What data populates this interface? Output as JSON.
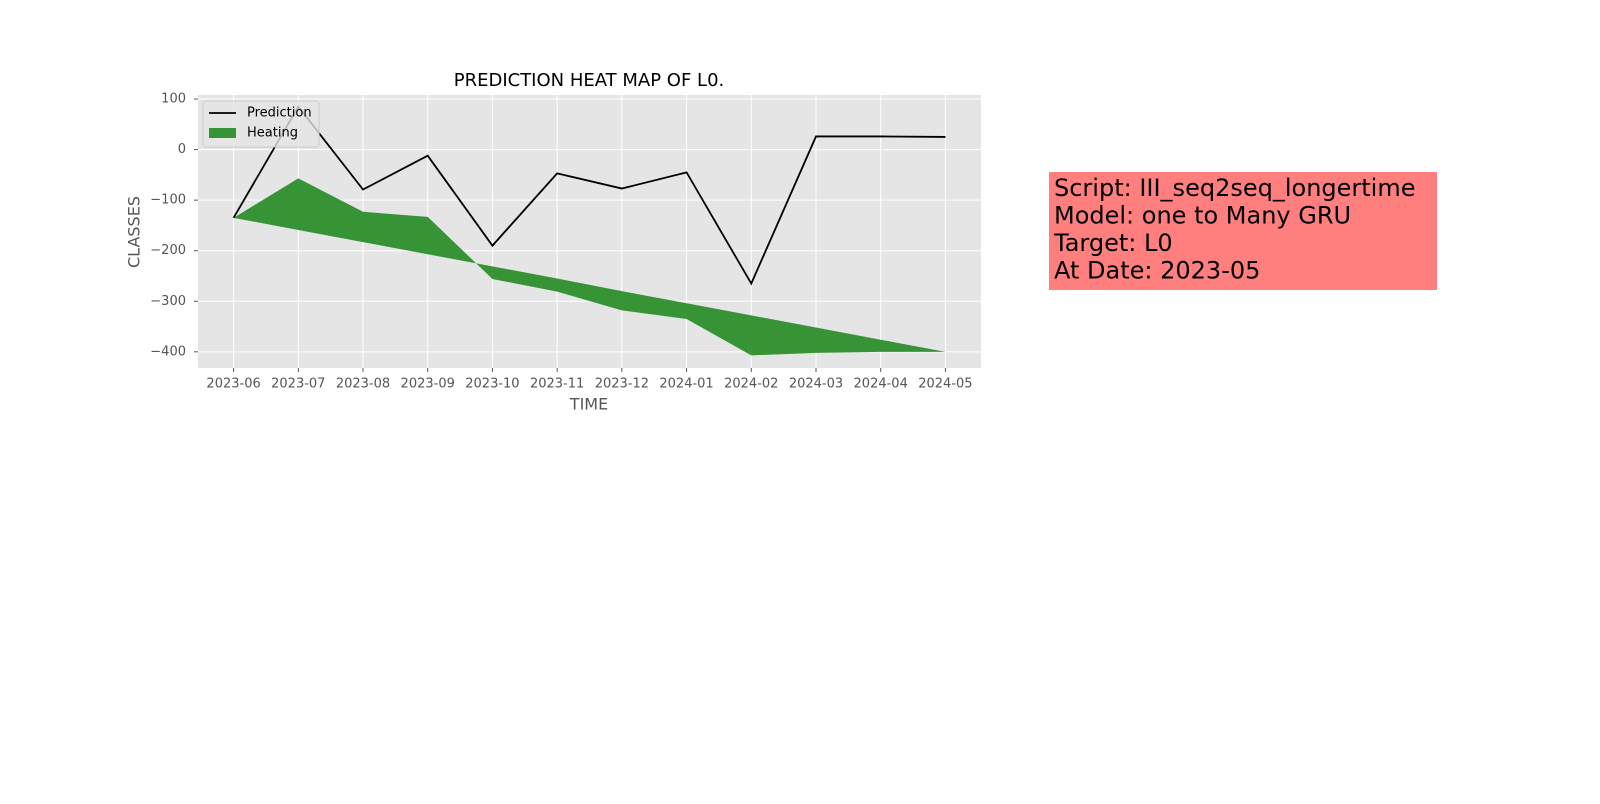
{
  "chart_data": {
    "type": "line",
    "title": "PREDICTION HEAT MAP OF L0.",
    "xlabel": "TIME",
    "ylabel": "CLASSES",
    "categories": [
      "2023-06",
      "2023-07",
      "2023-08",
      "2023-09",
      "2023-10",
      "2023-11",
      "2023-12",
      "2024-01",
      "2024-02",
      "2024-03",
      "2024-04",
      "2024-05"
    ],
    "series": [
      {
        "name": "Prediction",
        "color": "#000000",
        "values": [
          -135,
          85,
          -79,
          -12,
          -190,
          -47,
          -77,
          -45,
          -265,
          26,
          26,
          25
        ]
      }
    ],
    "fill": {
      "name": "Heating",
      "color": "#228b22",
      "y1": [
        -135,
        -57,
        -123,
        -133,
        -256,
        -281,
        -318,
        -335,
        -407,
        -402,
        -400,
        -400
      ],
      "y2": [
        -135,
        -159,
        -183,
        -207,
        -231,
        -255,
        -280,
        -304,
        -328,
        -352,
        -376,
        -400
      ]
    },
    "ylim": [
      -432,
      108
    ],
    "yticks": [
      100,
      0,
      {
        "value": -100,
        "label": "−100"
      },
      {
        "value": -200,
        "label": "−200"
      },
      {
        "value": -300,
        "label": "−300"
      },
      {
        "value": -400,
        "label": "−400"
      }
    ],
    "grid": true,
    "legend": "upper left",
    "annotation": {
      "color": "#ff7f7f",
      "lines": [
        "Script: III_seq2seq_longertime",
        "Model: one to Many GRU",
        "Target: L0",
        "At Date: 2023-05"
      ]
    }
  }
}
